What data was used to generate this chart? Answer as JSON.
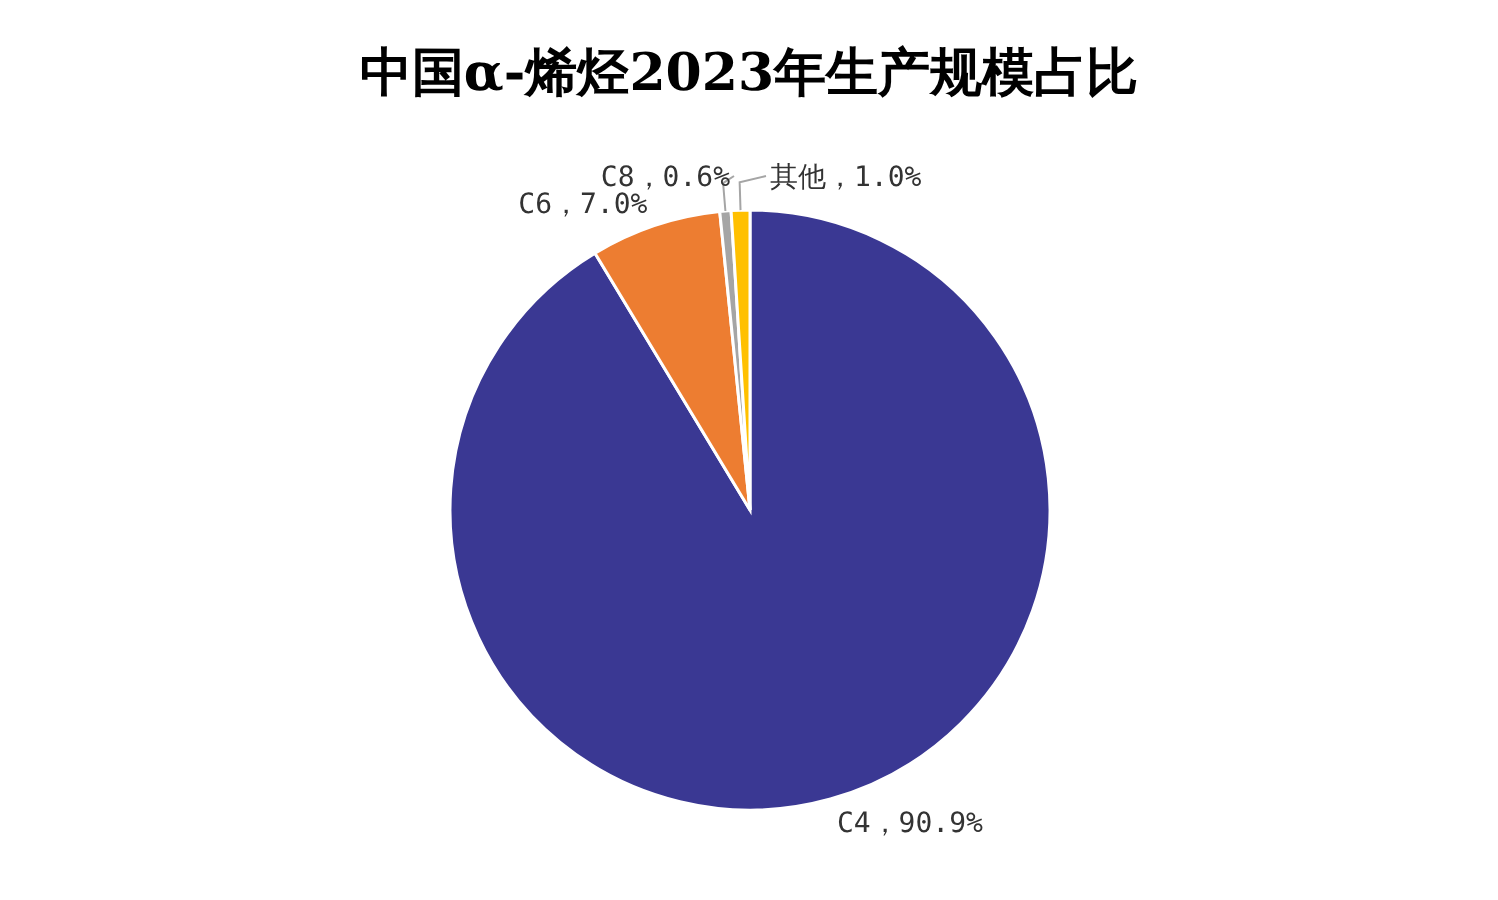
{
  "chart_data": {
    "type": "pie",
    "title": "中国α-烯烃2023年生产规模占比",
    "categories": [
      "C4",
      "C6",
      "C8",
      "其他"
    ],
    "values": [
      90.9,
      7.0,
      0.6,
      1.0
    ],
    "colors": [
      "#3a3893",
      "#ed7d31",
      "#a5a5a5",
      "#ffc000"
    ],
    "value_labels": [
      "，90.9%",
      "，7.0%",
      "，0.6%",
      "，1.0%"
    ]
  }
}
